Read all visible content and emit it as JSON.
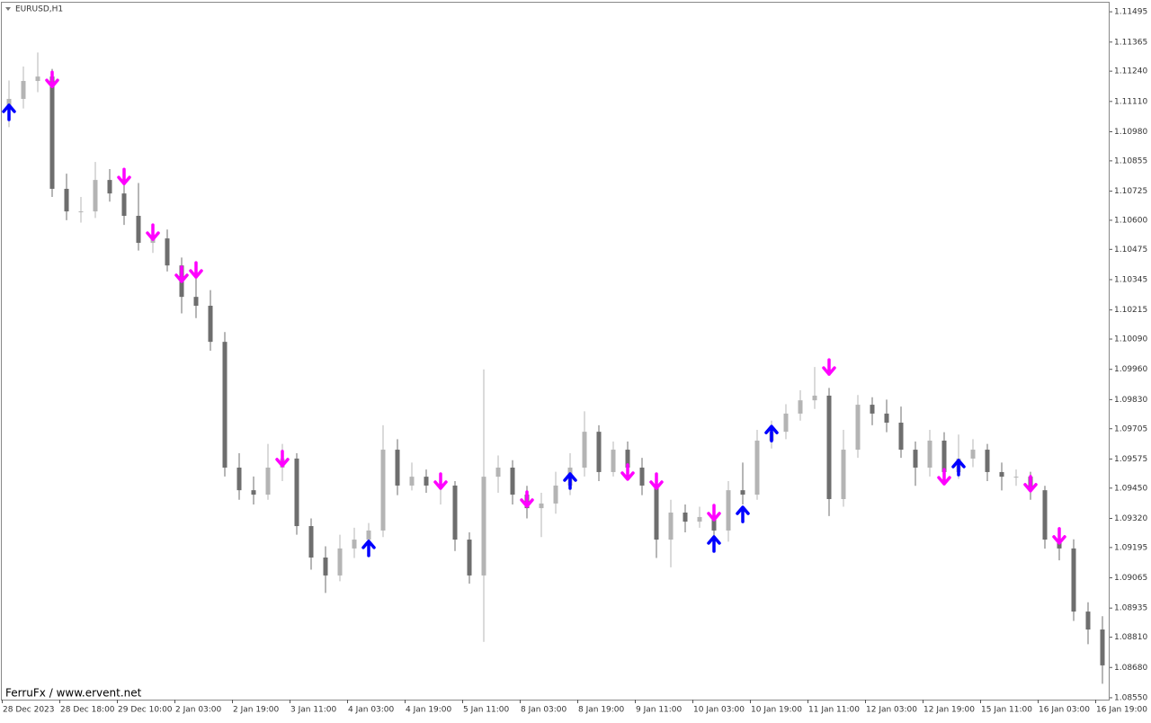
{
  "chart_data": {
    "type": "candlestick",
    "title": "EURUSD,H1",
    "watermark": "FerruFx / www.ervent.net",
    "ylim": [
      1.08542,
      1.11534
    ],
    "yticks": [
      1.11495,
      1.11365,
      {
        "value": 1.1124,
        "label": "1.11240"
      },
      {
        "value": 1.1111,
        "label": "1.11110"
      },
      {
        "value": 1.1098,
        "label": "1.10980"
      },
      1.10855,
      1.10725,
      {
        "value": 1.106,
        "label": "1.10600"
      },
      1.10475,
      1.10345,
      1.10215,
      {
        "value": 1.1009,
        "label": "1.10090"
      },
      {
        "value": 1.0996,
        "label": "1.09960"
      },
      {
        "value": 1.0983,
        "label": "1.09830"
      },
      1.09705,
      1.09575,
      {
        "value": 1.0945,
        "label": "1.09450"
      },
      {
        "value": 1.0932,
        "label": "1.09320"
      },
      1.09195,
      1.09065,
      1.08935,
      {
        "value": 1.0881,
        "label": "1.08810"
      },
      {
        "value": 1.0868,
        "label": "1.08680"
      },
      {
        "value": 1.0855,
        "label": "1.08550"
      }
    ],
    "xticks": [
      {
        "value": 0,
        "label": "28 Dec 2023"
      },
      {
        "value": 4,
        "label": "28 Dec 18:00"
      },
      {
        "value": 8,
        "label": "29 Dec 10:00"
      },
      {
        "value": 12,
        "label": "2 Jan 03:00"
      },
      {
        "value": 16,
        "label": "2 Jan 19:00"
      },
      {
        "value": 20,
        "label": "3 Jan 11:00"
      },
      {
        "value": 24,
        "label": "4 Jan 03:00"
      },
      {
        "value": 28,
        "label": "4 Jan 19:00"
      },
      {
        "value": 32,
        "label": "5 Jan 11:00"
      },
      {
        "value": 36,
        "label": "8 Jan 03:00"
      },
      {
        "value": 40,
        "label": "8 Jan 19:00"
      },
      {
        "value": 44,
        "label": "9 Jan 11:00"
      },
      {
        "value": 48,
        "label": "10 Jan 03:00"
      },
      {
        "value": 52,
        "label": "10 Jan 19:00"
      },
      {
        "value": 56,
        "label": "11 Jan 11:00"
      },
      {
        "value": 60,
        "label": "12 Jan 03:00"
      },
      {
        "value": 64,
        "label": "12 Jan 19:00"
      },
      {
        "value": 68,
        "label": "15 Jan 11:00"
      },
      {
        "value": 72,
        "label": "16 Jan 03:00"
      },
      {
        "value": 76,
        "label": "16 Jan 19:00"
      }
    ],
    "bull_color": "#b4b4b4",
    "bear_color": "#6e6e6e",
    "open": [
      1.11082,
      1.11121,
      1.11198,
      1.11217,
      1.10735,
      1.10638,
      1.10638,
      1.10773,
      1.10715,
      1.10619,
      1.10503,
      1.10522,
      1.10406,
      1.10271,
      1.10233,
      1.10078,
      1.09538,
      1.09441,
      1.09422,
      1.09538,
      1.09577,
      1.09287,
      1.09152,
      1.09075,
      1.09191,
      1.09229,
      1.09268,
      1.09615,
      1.09461,
      1.09499,
      1.09461,
      1.09461,
      1.09229,
      1.09075,
      1.09499,
      1.09538,
      1.09422,
      1.09364,
      1.09384,
      1.09461,
      1.09538,
      1.09692,
      1.09519,
      1.09615,
      1.09538,
      1.09461,
      1.09229,
      1.09345,
      1.09306,
      1.09326,
      1.09268,
      1.09441,
      1.09422,
      1.09654,
      1.09692,
      1.0977,
      1.09827,
      1.09847,
      1.09403,
      1.09615,
      1.09808,
      1.0977,
      1.09731,
      1.09615,
      1.09538,
      1.09654,
      1.09519,
      1.09577,
      1.09615,
      1.09519,
      1.09499,
      1.09499,
      1.09441,
      1.09229,
      1.09191,
      1.0892,
      1.08843
    ],
    "high": [
      1.112,
      1.1126,
      1.1132,
      1.1125,
      1.108,
      1.107,
      1.1085,
      1.1082,
      1.1079,
      1.1076,
      1.1058,
      1.1056,
      1.1044,
      1.1038,
      1.103,
      1.1012,
      1.096,
      1.095,
      1.0964,
      1.0964,
      1.096,
      1.0932,
      1.092,
      1.0925,
      1.0928,
      1.093,
      1.0972,
      1.0966,
      1.0956,
      1.0953,
      1.095,
      1.0948,
      1.0926,
      1.0996,
      1.0959,
      1.0957,
      1.0946,
      1.0943,
      1.0952,
      1.096,
      1.0978,
      1.0972,
      1.0965,
      1.0965,
      1.0958,
      1.095,
      1.094,
      1.0938,
      1.0937,
      1.0936,
      1.0948,
      1.0956,
      1.097,
      1.0974,
      1.0981,
      1.0987,
      1.0997,
      1.0988,
      1.097,
      1.0985,
      1.0984,
      1.0983,
      1.098,
      1.0965,
      1.097,
      1.0969,
      1.0968,
      1.0966,
      1.0964,
      1.0956,
      1.0953,
      1.0952,
      1.0946,
      1.0926,
      1.0923,
      1.0896,
      1.089
    ],
    "low": [
      1.11,
      1.1108,
      1.1115,
      1.107,
      1.106,
      1.1059,
      1.1061,
      1.1068,
      1.1058,
      1.1047,
      1.1046,
      1.1038,
      1.102,
      1.1018,
      1.1004,
      1.095,
      1.094,
      1.0938,
      1.094,
      1.0948,
      1.0925,
      1.091,
      1.09,
      1.0905,
      1.0915,
      1.0918,
      1.0924,
      1.0942,
      1.0944,
      1.0943,
      1.0938,
      1.0918,
      1.0904,
      1.0879,
      1.0943,
      1.0938,
      1.0932,
      1.0924,
      1.0934,
      1.0942,
      1.095,
      1.0948,
      1.095,
      1.095,
      1.0942,
      1.0915,
      1.0911,
      1.0926,
      1.0928,
      1.092,
      1.0922,
      1.0938,
      1.094,
      1.0962,
      1.0966,
      1.0974,
      1.0979,
      1.0933,
      1.0937,
      1.0958,
      1.0972,
      1.0969,
      1.0958,
      1.0946,
      1.095,
      1.0948,
      1.0949,
      1.0954,
      1.0948,
      1.0944,
      1.0946,
      1.094,
      1.0919,
      1.0914,
      1.0888,
      1.0878,
      1.0861
    ],
    "close": [
      1.11121,
      1.11198,
      1.11217,
      1.10735,
      1.10638,
      1.10638,
      1.10773,
      1.10715,
      1.10619,
      1.10503,
      1.10522,
      1.10406,
      1.10271,
      1.10233,
      1.10078,
      1.09538,
      1.09441,
      1.09422,
      1.09538,
      1.09577,
      1.09287,
      1.09152,
      1.09075,
      1.09191,
      1.09229,
      1.09268,
      1.09615,
      1.09461,
      1.09499,
      1.09461,
      1.09461,
      1.09229,
      1.09075,
      1.09499,
      1.09538,
      1.09422,
      1.09364,
      1.09384,
      1.09461,
      1.09538,
      1.09692,
      1.09519,
      1.09615,
      1.09538,
      1.09461,
      1.09229,
      1.09345,
      1.09306,
      1.09326,
      1.09268,
      1.09441,
      1.09422,
      1.09654,
      1.09692,
      1.0977,
      1.09827,
      1.09847,
      1.09403,
      1.09615,
      1.09808,
      1.0977,
      1.09731,
      1.09615,
      1.09538,
      1.09654,
      1.09519,
      1.09577,
      1.09615,
      1.09519,
      1.09499,
      1.09499,
      1.09441,
      1.09229,
      1.09191,
      1.0892,
      1.08843,
      1.08689
    ],
    "sell_signals": {
      "color": "#ff00ff",
      "x": [
        3,
        8,
        10,
        12,
        13,
        19,
        30,
        36,
        43,
        45,
        49,
        57,
        65,
        71,
        73
      ],
      "values": [
        1.11205,
        1.10788,
        1.10549,
        1.10368,
        1.10387,
        1.09577,
        1.0948,
        1.09403,
        1.09519,
        1.0948,
        1.09345,
        1.0997,
        1.09499,
        1.09469,
        1.09245
      ]
    },
    "buy_signals": {
      "color": "#0000ff",
      "x": [
        0,
        25,
        39,
        49,
        51,
        53,
        66
      ],
      "values": [
        1.11063,
        1.09191,
        1.0948,
        1.0921,
        1.09337,
        1.09684,
        1.09538
      ]
    }
  }
}
